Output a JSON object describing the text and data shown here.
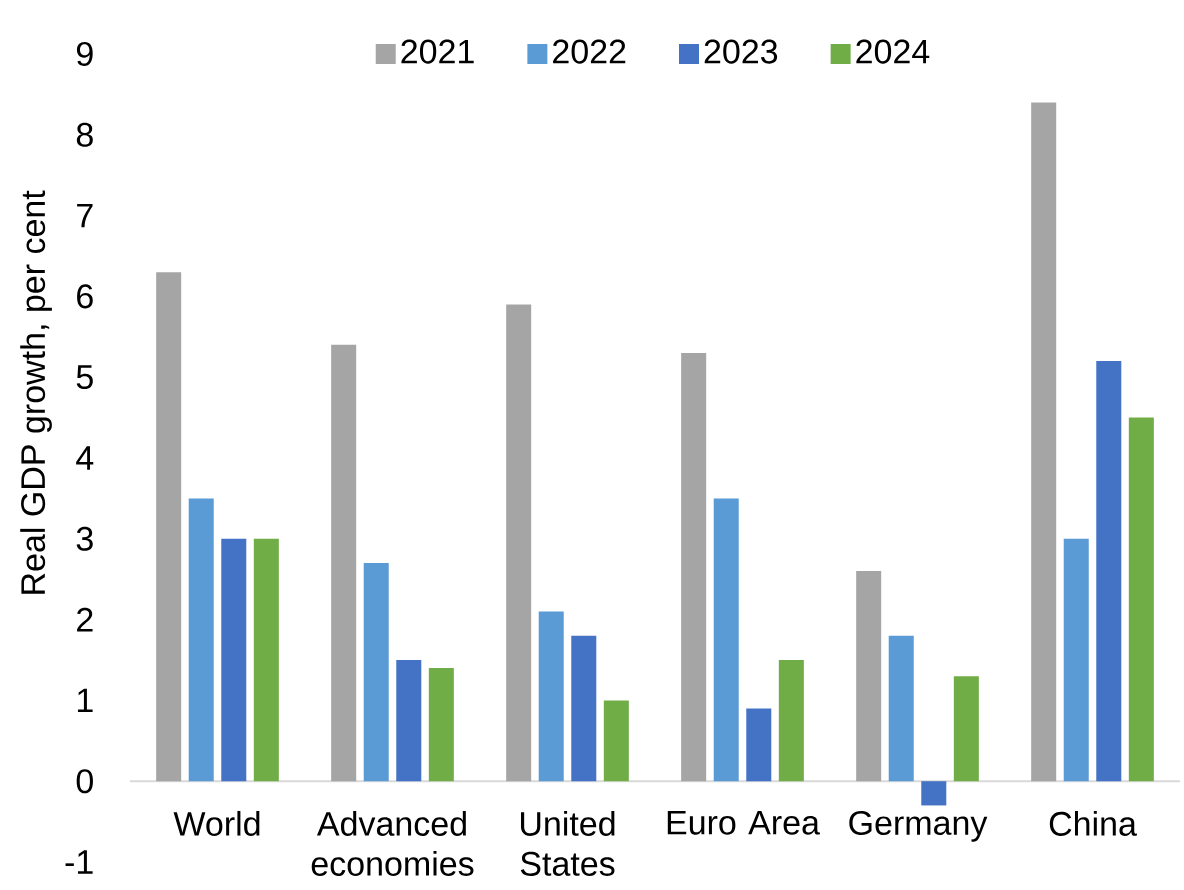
{
  "chart_data": {
    "type": "bar",
    "ylabel": "Real GDP growth, per cent",
    "categories": [
      "World",
      "Advanced economies",
      "United States",
      "Euro Area",
      "Germany",
      "China"
    ],
    "series": [
      {
        "name": "2021",
        "color": "#a5a5a5",
        "values": [
          6.3,
          5.4,
          5.9,
          5.3,
          2.6,
          8.4
        ]
      },
      {
        "name": "2022",
        "color": "#5b9bd5",
        "values": [
          3.5,
          2.7,
          2.1,
          3.5,
          1.8,
          3.0
        ]
      },
      {
        "name": "2023",
        "color": "#4472c4",
        "values": [
          3.0,
          1.5,
          1.8,
          0.9,
          -0.3,
          5.2
        ]
      },
      {
        "name": "2024",
        "color": "#70ad47",
        "values": [
          3.0,
          1.4,
          1.0,
          1.5,
          1.3,
          4.5
        ]
      }
    ],
    "ylim": [
      -1,
      9
    ],
    "yticks": [
      -1,
      0,
      1,
      2,
      3,
      4,
      5,
      6,
      7,
      8,
      9
    ],
    "legend": "top"
  }
}
